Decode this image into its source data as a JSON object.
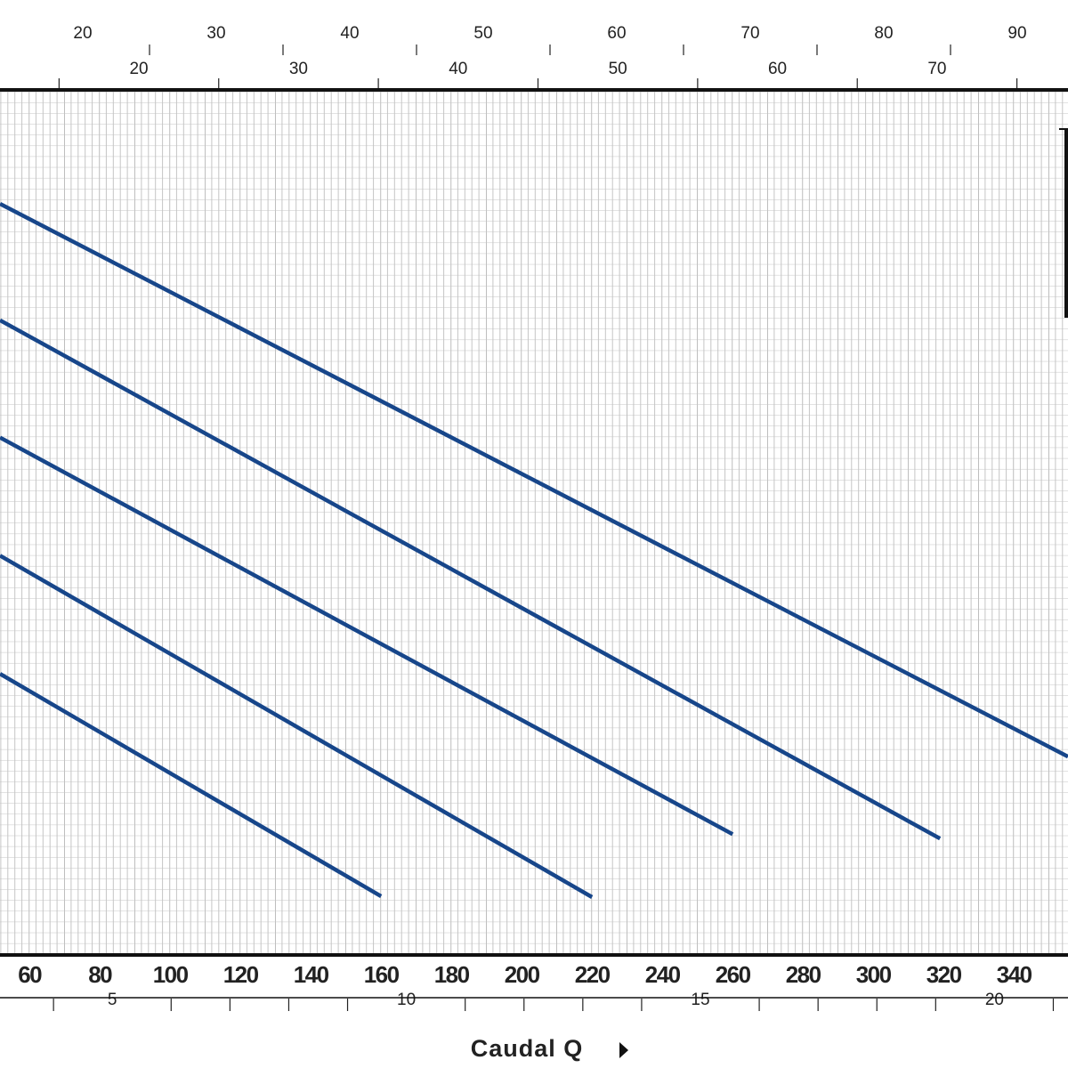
{
  "chart_data": {
    "type": "line",
    "title": "Caudal Q",
    "xlim": [
      51.6,
      355.4
    ],
    "xticks": [
      60,
      80,
      100,
      120,
      140,
      160,
      180,
      200,
      220,
      240,
      260,
      280,
      300,
      320,
      340
    ],
    "ylim": [
      0,
      100
    ],
    "grid": true,
    "series": [
      {
        "color": "#17468a",
        "x": [
          51.6,
          355.4
        ],
        "values": [
          87.0,
          22.9
        ]
      },
      {
        "color": "#17468a",
        "x": [
          51.6,
          319
        ],
        "values": [
          73.5,
          13.4
        ]
      },
      {
        "color": "#17468a",
        "x": [
          51.6,
          260
        ],
        "values": [
          59.9,
          13.9
        ]
      },
      {
        "color": "#17468a",
        "x": [
          51.6,
          220
        ],
        "values": [
          46.2,
          6.6
        ]
      },
      {
        "color": "#17468a",
        "x": [
          51.6,
          160
        ],
        "values": [
          32.5,
          6.7
        ]
      }
    ],
    "secondary_axes": [
      {
        "position": "top",
        "lim": [
          13.8,
          93.8
        ],
        "ticks": [
          20,
          30,
          40,
          50,
          60,
          70,
          80,
          90
        ],
        "minor_ticks": [
          25,
          35,
          45,
          55,
          65,
          75,
          85
        ]
      },
      {
        "position": "top-inner",
        "lim": [
          11.3,
          78.2
        ],
        "ticks": [
          20,
          30,
          40,
          50,
          60,
          70
        ],
        "minor_ticks": [
          15,
          25,
          35,
          45,
          55,
          65,
          75
        ]
      },
      {
        "position": "bottom",
        "lim": [
          3.09,
          21.25
        ],
        "ticks": [
          5,
          10,
          15,
          20
        ],
        "minor_ticks": [
          4,
          6,
          7,
          8,
          9,
          11,
          12,
          13,
          14,
          16,
          17,
          18,
          19,
          21
        ]
      }
    ]
  }
}
